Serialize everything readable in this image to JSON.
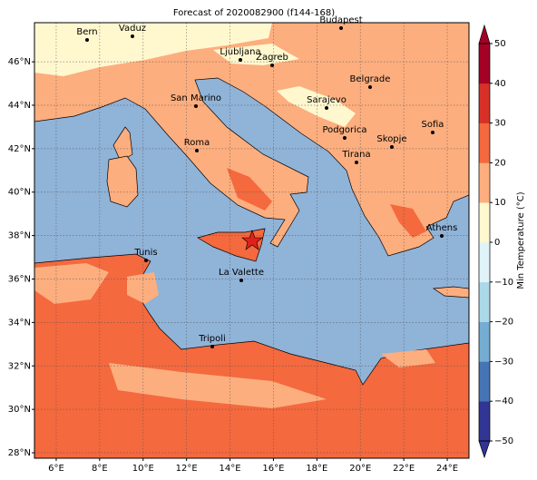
{
  "map": {
    "title": "Forecast of 2020082900 (f144-168)",
    "xlim": [
      5,
      25
    ],
    "ylim": [
      27.75,
      47.8
    ],
    "xticks": [
      {
        "value": 6,
        "label": "6°E"
      },
      {
        "value": 8,
        "label": "8°E"
      },
      {
        "value": 10,
        "label": "10°E"
      },
      {
        "value": 12,
        "label": "12°E"
      },
      {
        "value": 14,
        "label": "14°E"
      },
      {
        "value": 16,
        "label": "16°E"
      },
      {
        "value": 18,
        "label": "18°E"
      },
      {
        "value": 20,
        "label": "20°E"
      },
      {
        "value": 22,
        "label": "22°E"
      },
      {
        "value": 24,
        "label": "24°E"
      }
    ],
    "yticks": [
      {
        "value": 28,
        "label": "28°N"
      },
      {
        "value": 30,
        "label": "30°N"
      },
      {
        "value": 32,
        "label": "32°N"
      },
      {
        "value": 34,
        "label": "34°N"
      },
      {
        "value": 36,
        "label": "36°N"
      },
      {
        "value": 38,
        "label": "38°N"
      },
      {
        "value": 40,
        "label": "40°N"
      },
      {
        "value": 42,
        "label": "42°N"
      },
      {
        "value": 44,
        "label": "44°N"
      },
      {
        "value": 46,
        "label": "46°N"
      }
    ],
    "grid": true,
    "cities": [
      "Bern",
      "Vaduz",
      "Budapest",
      "Ljubljana",
      "Zagreb",
      "Belgrade",
      "San Marino",
      "Sarajevo",
      "Sofia",
      "Podgorica",
      "Skopje",
      "Roma",
      "Tirana",
      "Athens",
      "Tunis",
      "La Valette",
      "Tripoli"
    ],
    "colorbar": {
      "label": "Min Temperature (°C)",
      "lim": [
        -50,
        50
      ],
      "ticks": [
        {
          "value": -50,
          "label": "−50"
        },
        {
          "value": -40,
          "label": "−40"
        },
        {
          "value": -30,
          "label": "−30"
        },
        {
          "value": -20,
          "label": "−20"
        },
        {
          "value": -10,
          "label": "−10"
        },
        0,
        10,
        20,
        30,
        40,
        50
      ],
      "colors": [
        "#313695",
        "#4575b4",
        "#74add1",
        "#abd9e9",
        "#e0f3f8",
        "#fff8cf",
        "#fdae7e",
        "#f4693e",
        "#d73027",
        "#a50026"
      ]
    }
  }
}
